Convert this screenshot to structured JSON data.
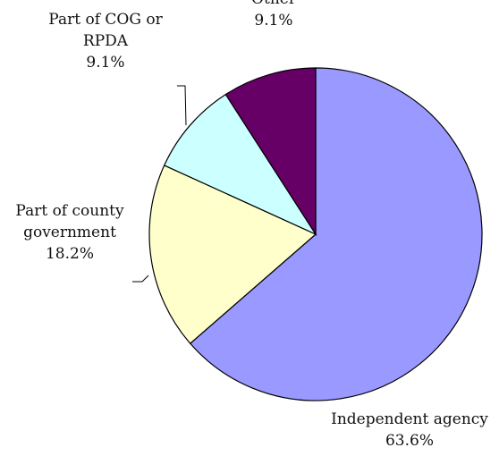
{
  "chart_data": {
    "type": "pie",
    "title": "",
    "start_angle": "12 o'clock",
    "direction": "clockwise",
    "slices": [
      {
        "name": "Independent agency",
        "label_lines": [
          "Independent agency"
        ],
        "value": 63.6,
        "value_label": "63.6%",
        "color": "#9999ff"
      },
      {
        "name": "Part of county government",
        "label_lines": [
          "Part of county",
          "government"
        ],
        "value": 18.2,
        "value_label": "18.2%",
        "color": "#ffffcc"
      },
      {
        "name": "Part of COG or RPDA",
        "label_lines": [
          "Part of COG or",
          "RPDA"
        ],
        "value": 9.1,
        "value_label": "9.1%",
        "color": "#ccffff"
      },
      {
        "name": "Other",
        "label_lines": [
          "Other"
        ],
        "value": 9.1,
        "value_label": "9.1%",
        "color": "#660066"
      }
    ],
    "legend": "none"
  }
}
